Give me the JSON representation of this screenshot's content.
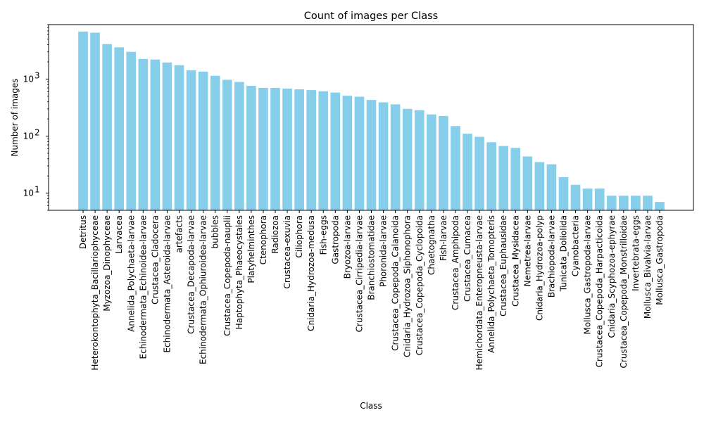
{
  "chart_data": {
    "type": "bar",
    "title": "Count of images per Class",
    "xlabel": "Class",
    "ylabel": "Number of images",
    "yscale": "log",
    "ylim": [
      5,
      9000
    ],
    "grid": false,
    "color": "#87CEEB",
    "ytick_labels": [
      {
        "value": 10,
        "base": "10",
        "exp": "1"
      },
      {
        "value": 100,
        "base": "10",
        "exp": "2"
      },
      {
        "value": 1000,
        "base": "10",
        "exp": "3"
      }
    ],
    "categories": [
      "Detritus",
      "Heterokontophyta_Bacillariophyceae",
      "Myzozoa_Dinophyceae",
      "Larvacea",
      "Annelida_Polychaeta-larvae",
      "Echinodermata_Echinoidea-larvae",
      "Crustacea_Cladocera",
      "Echinodermata_Asteroida-larvae",
      "artefacts",
      "Crustacea_Decapoda-larvae",
      "Echinodermata_Ophiuroidea-larvae",
      "bubbles",
      "Crustacea_Copepoda-nauplii",
      "Haptophyta_Phaeocystales",
      "Platyhelminthes",
      "Ctenophora",
      "Radiozoa",
      "Crustacea-exuvia",
      "Ciliophora",
      "Cnidaria_Hydrozoa-medusa",
      "Fish-eggs",
      "Gastropoda",
      "Bryozoa-larvae",
      "Crustacea_Cirripedia-larvae",
      "Branchiostomatidae",
      "Phoronida-larvae",
      "Crustacea_Copepoda_Calanoida",
      "Cnidaria_Hydrozoa_Siphonophora",
      "Crustacea_Copepoda_Cyclopoida",
      "Chaetognatha",
      "Fish-larvae",
      "Crustacea_Amphipoda",
      "Crustacea_Cumacea",
      "Hemichordata_Enteropneusta-larvae",
      "Annelida_Polychaeta_Tomopteris",
      "Crustacea_Euphausidae",
      "Crustacea_Mysidacea",
      "Nemetrea-larvae",
      "Cnidaria_Hydrozoa-polyp",
      "Brachiopoda-larvae",
      "Tunicata_Doliolida",
      "Cyanobacteria",
      "Mollusca_Gastropoda-larvae",
      "Crustacea_Copepoda_Harpacticoida",
      "Cnidaria_Scyphozoa-ephyrae",
      "Crustacea_Copepoda_Monstrilloidae",
      "Invertebrata-eggs",
      "Mollusca_Bivalvia-larvae",
      "Mollusca_Gastropoda"
    ],
    "values": [
      6800,
      6500,
      4100,
      3600,
      3000,
      2250,
      2200,
      1950,
      1750,
      1420,
      1350,
      1140,
      970,
      890,
      760,
      700,
      700,
      680,
      660,
      640,
      610,
      580,
      510,
      490,
      430,
      390,
      360,
      300,
      285,
      240,
      225,
      150,
      110,
      97,
      78,
      67,
      62,
      44,
      35,
      32,
      19,
      14,
      12,
      12,
      9,
      9,
      9,
      9,
      7
    ]
  }
}
